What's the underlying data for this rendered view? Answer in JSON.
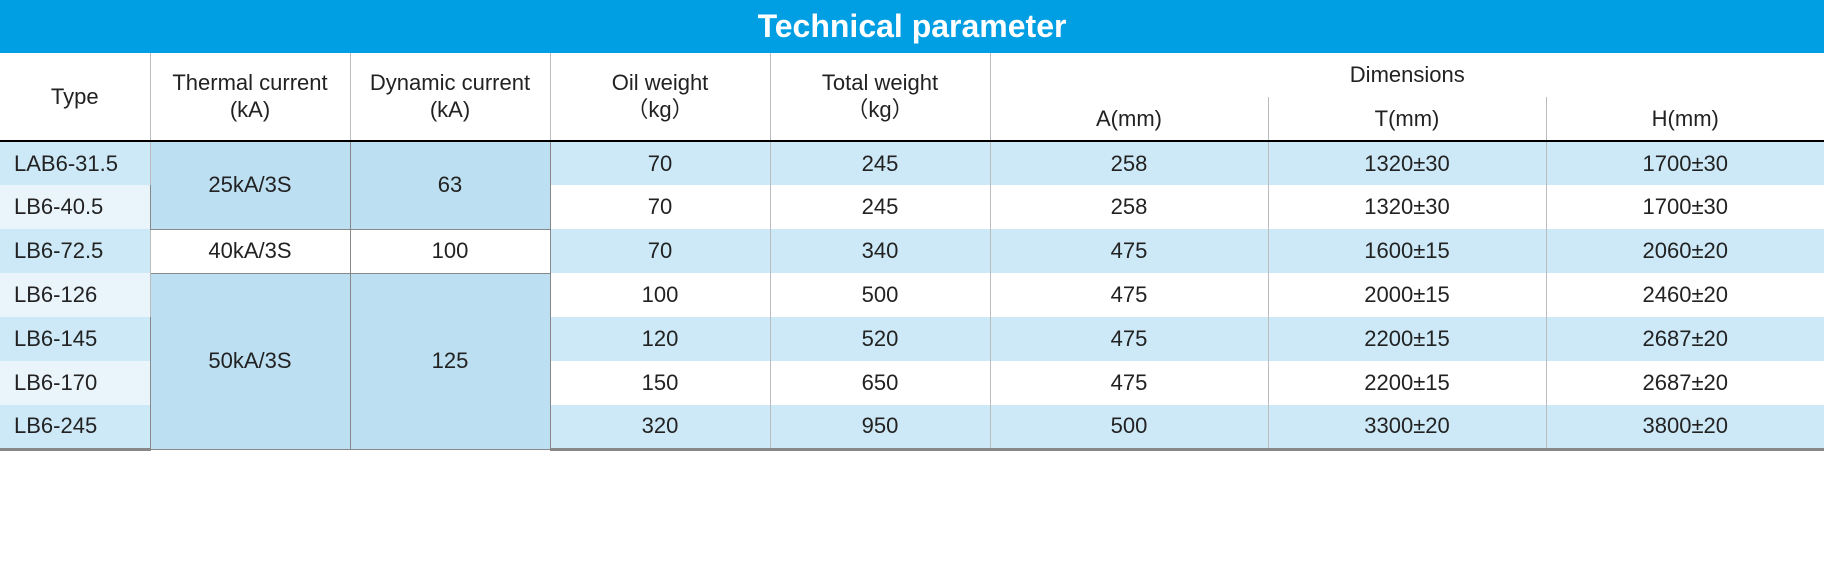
{
  "title": "Technical parameter",
  "columns": {
    "type": "Type",
    "thermal": "Thermal current\n(kA)",
    "dynamic": "Dynamic current\n(kA)",
    "oil": "Oil weight\n（kg）",
    "total": "Total weight\n（kg）",
    "dimensions": "Dimensions",
    "a": "A(mm)",
    "t": "T(mm)",
    "h": "H(mm)"
  },
  "groups": [
    {
      "thermal": "25kA/3S",
      "dynamic": "63",
      "style": "blue",
      "span": 2
    },
    {
      "thermal": "40kA/3S",
      "dynamic": "100",
      "style": "white",
      "span": 1
    },
    {
      "thermal": "50kA/3S",
      "dynamic": "125",
      "style": "blue",
      "span": 4
    }
  ],
  "rows": [
    {
      "type": "LAB6-31.5",
      "oil": "70",
      "total": "245",
      "a": "258",
      "t": "1320±30",
      "h": "1700±30"
    },
    {
      "type": "LB6-40.5",
      "oil": "70",
      "total": "245",
      "a": "258",
      "t": "1320±30",
      "h": "1700±30"
    },
    {
      "type": "LB6-72.5",
      "oil": "70",
      "total": "340",
      "a": "475",
      "t": "1600±15",
      "h": "2060±20"
    },
    {
      "type": "LB6-126",
      "oil": "100",
      "total": "500",
      "a": "475",
      "t": "2000±15",
      "h": "2460±20"
    },
    {
      "type": "LB6-145",
      "oil": "120",
      "total": "520",
      "a": "475",
      "t": "2200±15",
      "h": "2687±20"
    },
    {
      "type": "LB6-170",
      "oil": "150",
      "total": "650",
      "a": "475",
      "t": "2200±15",
      "h": "2687±20"
    },
    {
      "type": "LB6-245",
      "oil": "320",
      "total": "950",
      "a": "500",
      "t": "3300±20",
      "h": "3800±20"
    }
  ],
  "colors": {
    "header_bg": "#009fe3",
    "zebra_light": "#cde9f7",
    "zebra_white": "#ffffff",
    "type_even": "#eaf4fb",
    "merge_blue": "#bcdff2",
    "border": "#bcbcbc"
  }
}
